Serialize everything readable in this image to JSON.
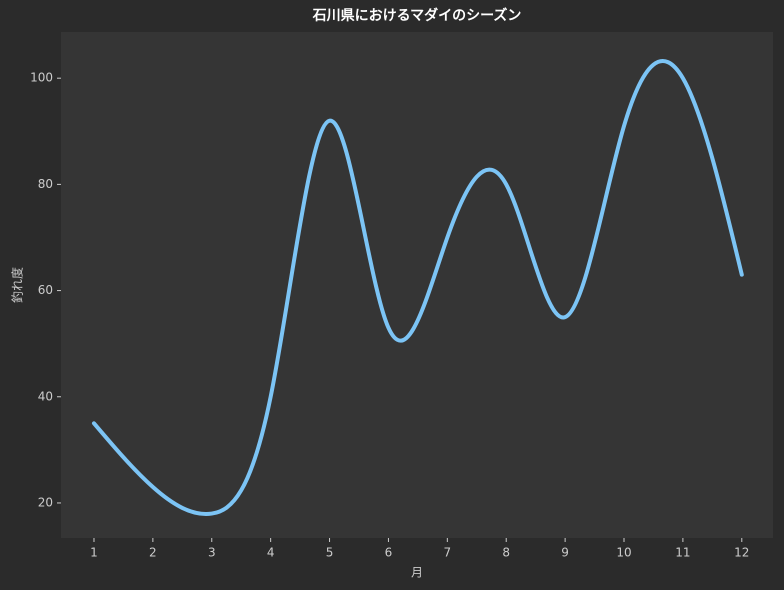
{
  "chart_data": {
    "type": "line",
    "title": "石川県におけるマダイのシーズン",
    "xlabel": "月",
    "ylabel": "釣れ度",
    "x": [
      1,
      2,
      3,
      4,
      5,
      6,
      7,
      8,
      9,
      10,
      11,
      12
    ],
    "series": [
      {
        "name": "釣れ度",
        "color": "#7cc4f5",
        "values": [
          35,
          23,
          18,
          40,
          92,
          53,
          70,
          80,
          55,
          91,
          100,
          63
        ]
      }
    ],
    "xlim": [
      0.44,
      12.53
    ],
    "ylim": [
      13.4,
      108.7
    ],
    "xticks": [
      1,
      2,
      3,
      4,
      5,
      6,
      7,
      8,
      9,
      10,
      11,
      12
    ],
    "yticks": [
      20,
      40,
      60,
      80,
      100
    ],
    "smooth": true,
    "legend": false,
    "grid": false
  }
}
